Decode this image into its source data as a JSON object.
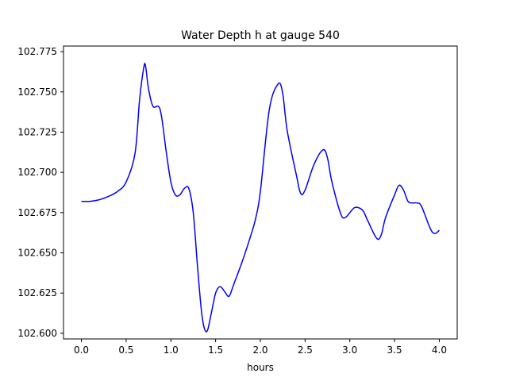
{
  "chart_data": {
    "type": "line",
    "title": "Water Depth h at gauge 540",
    "xlabel": "hours",
    "ylabel": "",
    "xlim": [
      -0.2,
      4.2
    ],
    "ylim": [
      102.5965,
      102.7785
    ],
    "grid": false,
    "x_ticks": [
      0.0,
      0.5,
      1.0,
      1.5,
      2.0,
      2.5,
      3.0,
      3.5,
      4.0
    ],
    "x_tick_labels": [
      "0.0",
      "0.5",
      "1.0",
      "1.5",
      "2.0",
      "2.5",
      "3.0",
      "3.5",
      "4.0"
    ],
    "y_ticks": [
      102.6,
      102.625,
      102.65,
      102.675,
      102.7,
      102.725,
      102.75,
      102.775
    ],
    "y_tick_labels": [
      "102.600",
      "102.625",
      "102.650",
      "102.675",
      "102.700",
      "102.725",
      "102.750",
      "102.775"
    ],
    "series": [
      {
        "color": "#0000ff",
        "x": [
          0.0,
          0.1,
          0.2,
          0.3,
          0.4,
          0.5,
          0.6,
          0.65,
          0.7,
          0.72,
          0.75,
          0.8,
          0.88,
          0.95,
          1.0,
          1.05,
          1.1,
          1.15,
          1.2,
          1.25,
          1.3,
          1.35,
          1.4,
          1.45,
          1.5,
          1.55,
          1.6,
          1.65,
          1.7,
          1.8,
          1.9,
          1.95,
          2.0,
          2.1,
          2.2,
          2.25,
          2.3,
          2.4,
          2.45,
          2.5,
          2.6,
          2.7,
          2.75,
          2.8,
          2.9,
          2.95,
          3.0,
          3.05,
          3.1,
          3.15,
          3.2,
          3.3,
          3.35,
          3.4,
          3.5,
          3.55,
          3.6,
          3.65,
          3.7,
          3.75,
          3.8,
          3.9,
          3.95,
          4.0
        ],
        "y": [
          102.682,
          102.682,
          102.683,
          102.685,
          102.688,
          102.694,
          102.712,
          102.745,
          102.766,
          102.765,
          102.752,
          102.741,
          102.739,
          102.712,
          102.694,
          102.686,
          102.686,
          102.69,
          102.69,
          102.675,
          102.64,
          102.61,
          102.601,
          102.612,
          102.625,
          102.629,
          102.626,
          102.623,
          102.63,
          102.645,
          102.662,
          102.672,
          102.688,
          102.739,
          102.755,
          102.749,
          102.726,
          102.699,
          102.687,
          102.689,
          102.705,
          102.714,
          102.709,
          102.694,
          102.674,
          102.672,
          102.675,
          102.678,
          102.678,
          102.676,
          102.67,
          102.659,
          102.661,
          102.672,
          102.686,
          102.692,
          102.689,
          102.682,
          102.681,
          102.681,
          102.679,
          102.665,
          102.662,
          102.664
        ]
      }
    ]
  }
}
